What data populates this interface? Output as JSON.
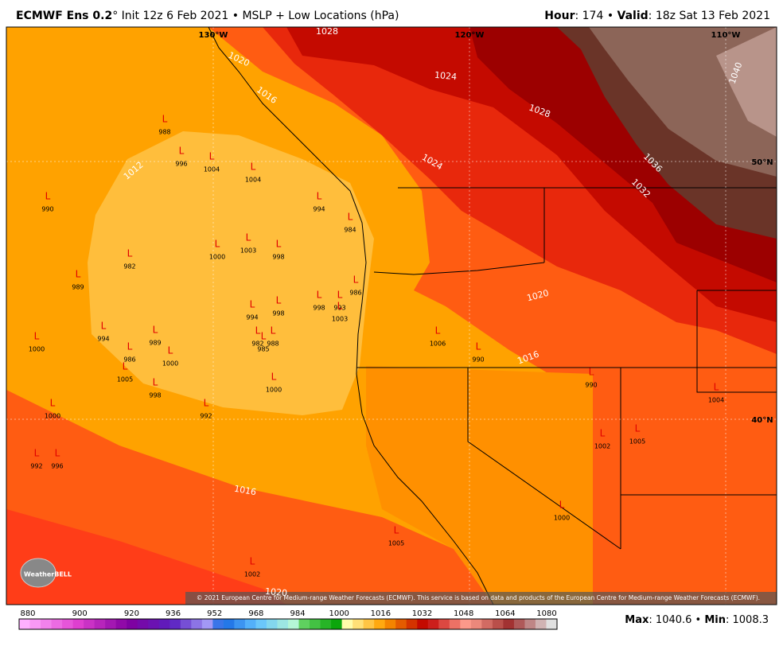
{
  "header": {
    "left": [
      "ECMWF Ens 0.2",
      "° Init 12z 6 Feb 2021 • MSLP + Low Locations (hPa)"
    ],
    "right": [
      "Hour",
      ": 174 • ",
      "Valid",
      ": 18z Sat 13 Feb 2021"
    ]
  },
  "map": {
    "lon_labels": [
      "130°W",
      "120°W",
      "110°W"
    ],
    "lat_labels": [
      "50°N",
      "40°N"
    ],
    "contour_labels": [
      "1028",
      "1024",
      "1028",
      "1024",
      "1036",
      "1032",
      "1040",
      "1012",
      "1020",
      "1016",
      "1020",
      "1016",
      "1016",
      "1020"
    ],
    "lows": [
      {
        "marker": "L",
        "value": 988
      },
      {
        "marker": "L",
        "value": 996
      },
      {
        "marker": "L",
        "value": 1004
      },
      {
        "marker": "L",
        "value": 1004
      },
      {
        "marker": "L",
        "value": 990
      },
      {
        "marker": "L",
        "value": 994
      },
      {
        "marker": "L",
        "value": 984
      },
      {
        "marker": "L",
        "value": 1000
      },
      {
        "marker": "L",
        "value": 1003
      },
      {
        "marker": "L",
        "value": 998
      },
      {
        "marker": "L",
        "value": 982
      },
      {
        "marker": "L",
        "value": 989
      },
      {
        "marker": "L",
        "value": 986
      },
      {
        "marker": "L",
        "value": 998
      },
      {
        "marker": "L",
        "value": 993
      },
      {
        "marker": "L",
        "value": 1003
      },
      {
        "marker": "L",
        "value": 994
      },
      {
        "marker": "L",
        "value": 998
      },
      {
        "marker": "L",
        "value": 982
      },
      {
        "marker": "L",
        "value": 985
      },
      {
        "marker": "L",
        "value": 988
      },
      {
        "marker": "L",
        "value": 994
      },
      {
        "marker": "L",
        "value": 989
      },
      {
        "marker": "L",
        "value": 986
      },
      {
        "marker": "L",
        "value": 1000
      },
      {
        "marker": "L",
        "value": 1005
      },
      {
        "marker": "L",
        "value": 998
      },
      {
        "marker": "L",
        "value": 1000
      },
      {
        "marker": "L",
        "value": 1000
      },
      {
        "marker": "L",
        "value": 1000
      },
      {
        "marker": "L",
        "value": 992
      },
      {
        "marker": "L",
        "value": 992
      },
      {
        "marker": "L",
        "value": 996
      },
      {
        "marker": "L",
        "value": 1006
      },
      {
        "marker": "L",
        "value": 990
      },
      {
        "marker": "L",
        "value": 990
      },
      {
        "marker": "L",
        "value": 1002
      },
      {
        "marker": "L",
        "value": 1005
      },
      {
        "marker": "L",
        "value": 1000
      },
      {
        "marker": "L",
        "value": 1005
      },
      {
        "marker": "L",
        "value": 1002
      },
      {
        "marker": "L",
        "value": 1004
      }
    ],
    "logo": "WeatherBELL",
    "copyright": "© 2021 European Centre for Medium-range Weather Forecasts (ECMWF). This service is based on data and products of the European Centre for Medium-range Weather Forecasts (ECMWF)."
  },
  "footer": {
    "colorbar_ticks": [
      880,
      900,
      920,
      936,
      952,
      968,
      984,
      1000,
      1016,
      1032,
      1048,
      1064,
      1080
    ],
    "stats": [
      "Max",
      ": 1040.6 • ",
      "Min",
      ": 1008.3"
    ]
  }
}
